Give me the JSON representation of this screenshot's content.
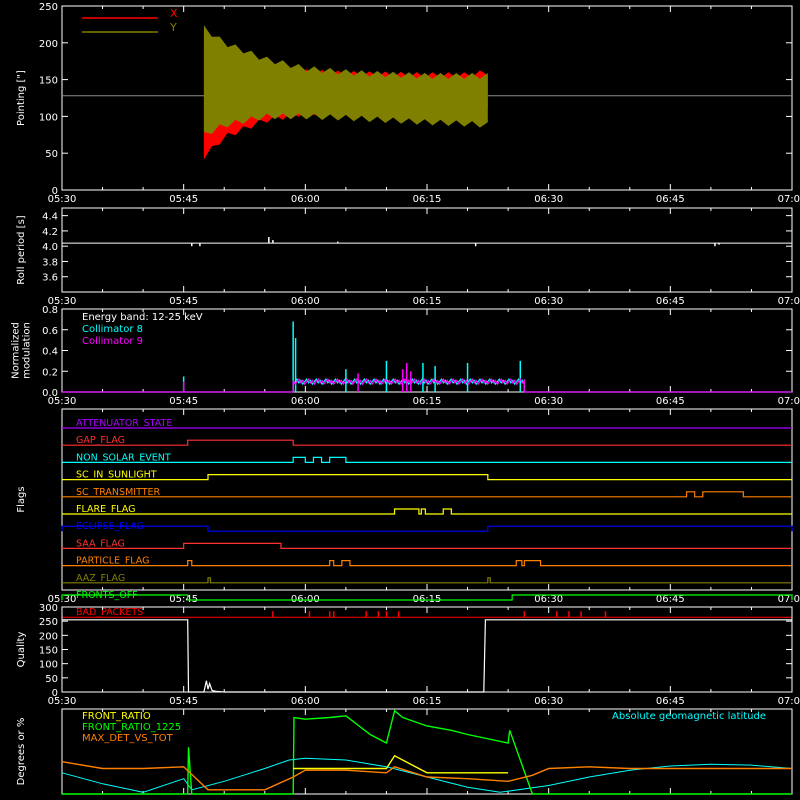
{
  "time_axis": {
    "ticks": [
      "05:30",
      "05:45",
      "06:00",
      "06:15",
      "06:30",
      "06:45",
      "07:00"
    ],
    "range_min": [
      0,
      90
    ]
  },
  "chart_data": [
    {
      "id": "pointing",
      "type": "line",
      "ylabel": "Pointing [\"]",
      "ylim": [
        0,
        250
      ],
      "yticks": [
        0,
        50,
        100,
        150,
        200,
        250
      ],
      "legend": [
        {
          "name": "X",
          "color": "#ff0000"
        },
        {
          "name": "Y",
          "color": "#808000"
        }
      ],
      "baseline": 128,
      "series": [
        {
          "name": "X",
          "color": "#ff0000",
          "segments": [
            [
              17.5,
              52.5
            ]
          ],
          "x": [
            17.5,
            20,
            25,
            30,
            35,
            40,
            45,
            50,
            52.5
          ],
          "upper": [
            200,
            180,
            165,
            160,
            158,
            157,
            156,
            156,
            160
          ],
          "lower": [
            45,
            72,
            95,
            105,
            108,
            110,
            112,
            112,
            115
          ]
        },
        {
          "name": "Y",
          "color": "#808000",
          "segments": [
            [
              17.5,
              52.5
            ]
          ],
          "x": [
            17.5,
            20,
            25,
            30,
            35,
            40,
            45,
            50,
            52.5
          ],
          "upper": [
            220,
            200,
            178,
            165,
            160,
            157,
            155,
            155,
            155
          ],
          "lower": [
            75,
            88,
            100,
            100,
            98,
            95,
            92,
            90,
            88
          ]
        }
      ]
    },
    {
      "id": "roll",
      "type": "line",
      "ylabel": "Roll period [s]",
      "ylim": [
        3.4,
        4.5
      ],
      "yticks": [
        3.6,
        3.8,
        4.0,
        4.2,
        4.4
      ],
      "series": [
        {
          "color": "#ffffff",
          "x": [
            0,
            90
          ],
          "y": [
            4.04,
            4.04
          ],
          "spikes": [
            {
              "x": 16,
              "y": 4.0
            },
            {
              "x": 17,
              "y": 4.0
            },
            {
              "x": 25.5,
              "y": 4.12
            },
            {
              "x": 26,
              "y": 4.08
            },
            {
              "x": 34,
              "y": 4.06
            },
            {
              "x": 51,
              "y": 4.0
            },
            {
              "x": 80.5,
              "y": 4.0
            },
            {
              "x": 81,
              "y": 4.02
            }
          ]
        }
      ]
    },
    {
      "id": "modulation",
      "type": "line",
      "ylabel": "Normalized modulation",
      "ylim": [
        0,
        0.8
      ],
      "yticks": [
        0.0,
        0.2,
        0.4,
        0.6,
        0.8
      ],
      "annotation": "Energy band: 12-25 keV",
      "legend": [
        {
          "name": "Collimator 8",
          "color": "#00ffff"
        },
        {
          "name": "Collimator 9",
          "color": "#ff00ff"
        }
      ],
      "series": [
        {
          "name": "Collimator 8",
          "color": "#00ffff",
          "base": 0.0,
          "active": [
            [
              28.5,
              57
            ]
          ],
          "level": 0.1,
          "spikes": [
            {
              "x": 15,
              "y": 0.15
            },
            {
              "x": 28.5,
              "y": 0.68
            },
            {
              "x": 28.8,
              "y": 0.52
            },
            {
              "x": 40,
              "y": 0.3
            },
            {
              "x": 44.5,
              "y": 0.28
            },
            {
              "x": 46,
              "y": 0.25
            },
            {
              "x": 56.5,
              "y": 0.3
            },
            {
              "x": 50,
              "y": 0.28
            },
            {
              "x": 35,
              "y": 0.22
            }
          ]
        },
        {
          "name": "Collimator 9",
          "color": "#ff00ff",
          "base": 0.0,
          "active": [
            [
              28.5,
              57
            ]
          ],
          "level": 0.1,
          "spikes": [
            {
              "x": 15,
              "y": 0.1
            },
            {
              "x": 42,
              "y": 0.22
            },
            {
              "x": 42.5,
              "y": 0.28
            },
            {
              "x": 43,
              "y": 0.2
            },
            {
              "x": 36.5,
              "y": 0.18
            }
          ]
        }
      ]
    },
    {
      "id": "flags",
      "type": "table",
      "ylabel": "Flags",
      "flags": [
        {
          "name": "ATTENUATOR_STATE",
          "color": "#aa00ff",
          "high": []
        },
        {
          "name": "GAP_FLAG",
          "color": "#ff3030",
          "high": [
            [
              15.5,
              28.5
            ]
          ]
        },
        {
          "name": "NON_SOLAR_EVENT",
          "color": "#00ffff",
          "high": [
            [
              28.5,
              30
            ],
            [
              31,
              32
            ],
            [
              33,
              35
            ]
          ]
        },
        {
          "name": "SC_IN_SUNLIGHT",
          "color": "#ffff00",
          "high": [
            [
              18,
              52.5
            ]
          ]
        },
        {
          "name": "SC_TRANSMITTER",
          "color": "#ff8000",
          "high": [
            [
              77,
              78
            ],
            [
              79,
              84
            ]
          ]
        },
        {
          "name": "FLARE_FLAG",
          "color": "#ffff00",
          "high": [
            [
              41,
              44
            ],
            [
              44.3,
              44.8
            ],
            [
              47,
              48
            ]
          ]
        },
        {
          "name": "ECLIPSE_FLAG",
          "color": "#0000ff",
          "high": [
            [
              0,
              18
            ],
            [
              52.5,
              90
            ]
          ]
        },
        {
          "name": "SAA_FLAG",
          "color": "#ff3030",
          "high": [
            [
              15,
              27
            ]
          ]
        },
        {
          "name": "PARTICLE_FLAG",
          "color": "#ff8000",
          "high": [
            [
              15.5,
              16
            ],
            [
              33,
              33.5
            ],
            [
              34.5,
              35.5
            ],
            [
              56,
              56.7
            ],
            [
              57,
              59
            ]
          ]
        },
        {
          "name": "AAZ_FLAG",
          "color": "#808000",
          "high": [
            [
              18,
              18.3
            ],
            [
              52.5,
              52.8
            ]
          ]
        },
        {
          "name": "FRONTS_OFF",
          "color": "#00ff00",
          "high": [
            [
              0,
              15.5
            ],
            [
              55.5,
              90
            ]
          ]
        },
        {
          "name": "BAD_PACKETS",
          "color": "#ff0000",
          "ticks": [
            26,
            30.5,
            33,
            33.5,
            37.5,
            39,
            40,
            41.5,
            57,
            61,
            62.5,
            64,
            67
          ]
        }
      ]
    },
    {
      "id": "quality",
      "type": "line",
      "ylabel": "Quality",
      "ylim": [
        0,
        300
      ],
      "yticks": [
        0,
        50,
        100,
        150,
        200,
        250,
        300
      ],
      "series": [
        {
          "color": "#ffffff",
          "x": [
            0,
            15.5,
            15.6,
            17.5,
            17.8,
            18,
            18.2,
            18.5,
            19,
            20,
            52,
            52.2,
            52.5,
            90
          ],
          "y": [
            255,
            255,
            0,
            0,
            40,
            10,
            30,
            5,
            2,
            0,
            0,
            255,
            255,
            255
          ]
        }
      ]
    },
    {
      "id": "ratios",
      "type": "line",
      "ylabel": "Degrees or %",
      "ylim": [
        0,
        100
      ],
      "legend": [
        {
          "name": "FRONT_RATIO",
          "color": "#ffff00"
        },
        {
          "name": "FRONT_RATIO_1225",
          "color": "#00ff00"
        },
        {
          "name": "MAX_DET_VS_TOT",
          "color": "#ff8000"
        }
      ],
      "annotation": "Absolute geomagnetic latitude",
      "annotation_color": "#00ffff",
      "series": [
        {
          "name": "Absolute geomagnetic latitude",
          "color": "#00ffff",
          "x": [
            0,
            5,
            10,
            15,
            16,
            20,
            25,
            28,
            30,
            35,
            40,
            45,
            50,
            54,
            60,
            65,
            70,
            75,
            80,
            85,
            90
          ],
          "y": [
            25,
            12,
            2,
            18,
            5,
            15,
            30,
            40,
            42,
            40,
            32,
            20,
            8,
            2,
            10,
            20,
            28,
            33,
            35,
            34,
            30
          ]
        },
        {
          "name": "FRONT_RATIO_1225",
          "color": "#00ff00",
          "x": [
            0,
            15.5,
            15.6,
            16,
            28.5,
            28.6,
            30,
            33,
            35,
            38,
            40,
            41,
            42,
            45,
            48,
            50,
            55,
            55.2,
            58,
            90
          ],
          "y": [
            0,
            0,
            55,
            0,
            0,
            90,
            88,
            90,
            92,
            70,
            60,
            98,
            90,
            80,
            75,
            70,
            60,
            75,
            0,
            0
          ]
        },
        {
          "name": "FRONT_RATIO",
          "color": "#ffff00",
          "x": [
            28.5,
            30,
            35,
            40,
            41,
            45,
            50,
            55
          ],
          "y": [
            30,
            30,
            30,
            30,
            45,
            25,
            25,
            25
          ]
        },
        {
          "name": "MAX_DET_VS_TOT",
          "color": "#ff8000",
          "x": [
            0,
            5,
            10,
            15,
            18,
            20,
            25,
            28.5,
            30,
            35,
            40,
            41,
            45,
            50,
            55,
            58,
            60,
            65,
            70,
            75,
            80,
            85,
            90
          ],
          "y": [
            38,
            30,
            30,
            32,
            5,
            5,
            5,
            20,
            28,
            28,
            25,
            32,
            20,
            18,
            15,
            22,
            30,
            32,
            30,
            30,
            30,
            30,
            30
          ]
        }
      ]
    }
  ]
}
